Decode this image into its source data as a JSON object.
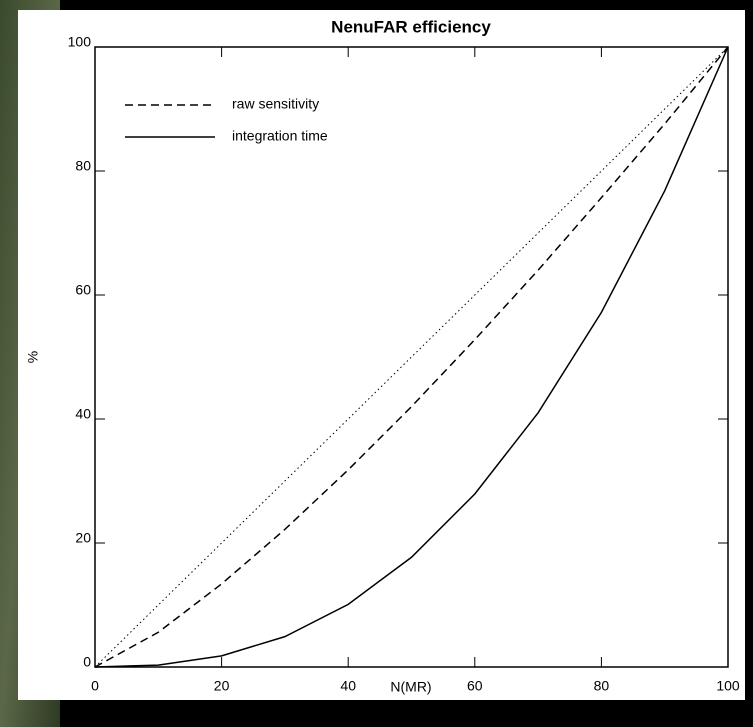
{
  "chart_data": {
    "type": "line",
    "title": "NenuFAR efficiency",
    "x_label": "N(MR)",
    "y_label": "%",
    "x": [
      0,
      10,
      20,
      30,
      40,
      50,
      60,
      70,
      80,
      90,
      100
    ],
    "series": [
      {
        "color": "#000000",
        "line_style": "dotted",
        "values": [
          0,
          10,
          20,
          30,
          40,
          50,
          60,
          70,
          80,
          90,
          100
        ]
      },
      {
        "name": "raw sensitivity",
        "color": "#000000",
        "line_style": "dashed",
        "values": [
          0,
          5.6,
          13.4,
          22.2,
          31.8,
          42.0,
          52.8,
          64.0,
          75.7,
          87.6,
          100
        ]
      },
      {
        "name": "integration time",
        "color": "#000000",
        "line_style": "solid",
        "values": [
          0,
          0.3,
          1.8,
          4.9,
          10.1,
          17.7,
          27.9,
          41.0,
          57.2,
          76.8,
          100
        ]
      }
    ],
    "xlim": [
      0,
      100
    ],
    "ylim": [
      0,
      100
    ],
    "xticks": [
      0,
      20,
      40,
      60,
      80,
      100
    ],
    "yticks": [
      0,
      20,
      40,
      60,
      80,
      100
    ],
    "grid": false,
    "legend": "upper left"
  }
}
